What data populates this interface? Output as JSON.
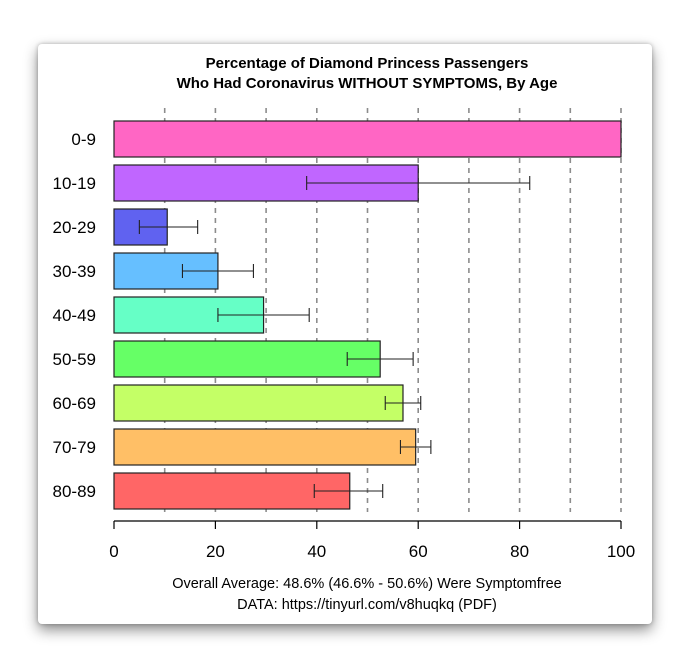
{
  "chart_data": {
    "type": "bar",
    "orientation": "horizontal",
    "title": "Percentage of Diamond Princess Passengers",
    "subtitle": "Who Had Coronavirus WITHOUT SYMPTOMS, By Age",
    "categories": [
      "0-9",
      "10-19",
      "20-29",
      "30-39",
      "40-49",
      "50-59",
      "60-69",
      "70-79",
      "80-89"
    ],
    "values": [
      100,
      60,
      10.5,
      20.5,
      29.5,
      52.5,
      57,
      59.5,
      46.5
    ],
    "error_low": [
      100,
      38,
      5,
      13.5,
      20.5,
      46,
      53.5,
      56.5,
      39.5
    ],
    "error_high": [
      100,
      82,
      16.5,
      27.5,
      38.5,
      59,
      60.5,
      62.5,
      53
    ],
    "colors": [
      "#ff66c4",
      "#c066ff",
      "#6062f0",
      "#66bfff",
      "#66ffc6",
      "#66ff66",
      "#c4ff66",
      "#ffbf66",
      "#ff6666"
    ],
    "xlim": [
      0,
      100
    ],
    "xticks": [
      0,
      20,
      40,
      60,
      80,
      100
    ],
    "grid_values": [
      10,
      20,
      30,
      40,
      50,
      60,
      70,
      80,
      90,
      100
    ],
    "grid": true,
    "xlabel": "",
    "ylabel": "",
    "footer_line1": "Overall Average: 48.6% (46.6% - 50.6%) Were Symptomfree",
    "footer_line2": "DATA: https://tinyurl.com/v8huqkq (PDF)"
  }
}
